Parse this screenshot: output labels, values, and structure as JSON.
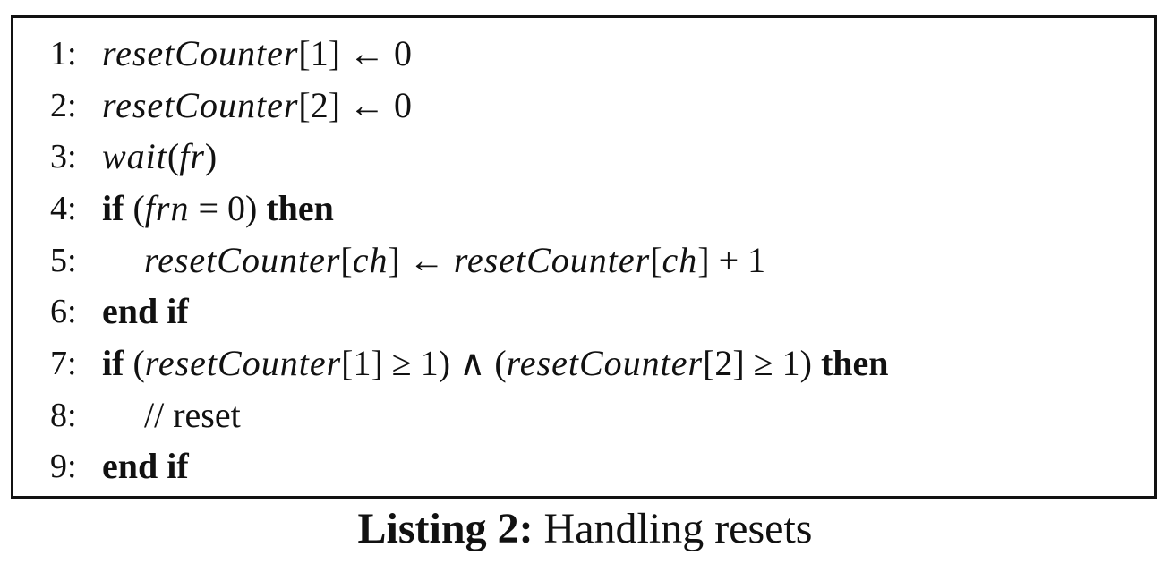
{
  "listing": {
    "lines": [
      {
        "num": "1:",
        "parts": [
          [
            "m",
            "resetCounter"
          ],
          [
            "r",
            "[1] ← 0"
          ]
        ]
      },
      {
        "num": "2:",
        "parts": [
          [
            "m",
            "resetCounter"
          ],
          [
            "r",
            "[2] ← 0"
          ]
        ]
      },
      {
        "num": "3:",
        "parts": [
          [
            "m",
            "wait"
          ],
          [
            "r",
            "("
          ],
          [
            "m",
            "fr"
          ],
          [
            "r",
            ")"
          ]
        ]
      },
      {
        "num": "4:",
        "parts": [
          [
            "kw",
            "if"
          ],
          [
            "r",
            " ("
          ],
          [
            "m",
            "frn"
          ],
          [
            "r",
            " = 0) "
          ],
          [
            "kw",
            "then"
          ]
        ]
      },
      {
        "num": "5:",
        "parts": [
          [
            "m",
            "resetCounter"
          ],
          [
            "r",
            "["
          ],
          [
            "m",
            "ch"
          ],
          [
            "r",
            "] ← "
          ],
          [
            "m",
            "resetCounter"
          ],
          [
            "r",
            "["
          ],
          [
            "m",
            "ch"
          ],
          [
            "r",
            "] + 1"
          ]
        ]
      },
      {
        "num": "6:",
        "parts": [
          [
            "kw",
            "end if"
          ]
        ]
      },
      {
        "num": "7:",
        "parts": [
          [
            "kw",
            "if"
          ],
          [
            "r",
            " ("
          ],
          [
            "m",
            "resetCounter"
          ],
          [
            "r",
            "[1] ≥ 1) ∧ ("
          ],
          [
            "m",
            "resetCounter"
          ],
          [
            "r",
            "[2] ≥ 1) "
          ],
          [
            "kw",
            "then"
          ]
        ]
      },
      {
        "num": "8:",
        "parts": [
          [
            "cmt",
            "// reset"
          ]
        ]
      },
      {
        "num": "9:",
        "parts": [
          [
            "kw",
            "end if"
          ]
        ]
      }
    ]
  },
  "caption": {
    "label": "Listing 2:",
    "text": "Handling resets"
  }
}
